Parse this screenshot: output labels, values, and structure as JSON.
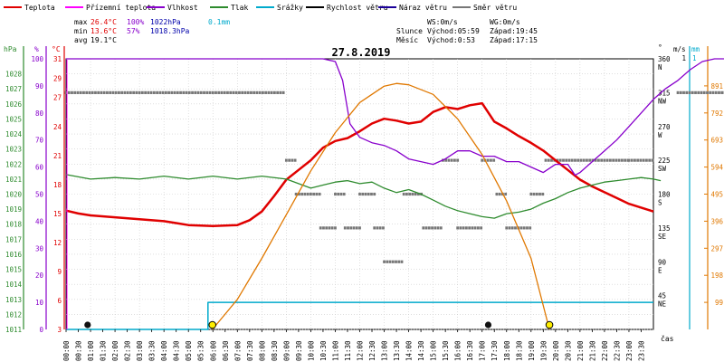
{
  "legend": [
    {
      "label": "Teplota",
      "color": "#e00000"
    },
    {
      "label": "Přízemní teplota",
      "color": "#ff00ff"
    },
    {
      "label": "Vlhkost",
      "color": "#8800cc"
    },
    {
      "label": "Tlak",
      "color": "#2e8b2e"
    },
    {
      "label": "Srážky",
      "color": "#00aacc"
    },
    {
      "label": "Rychlost větru",
      "color": "#000000"
    },
    {
      "label": "Náraz větru",
      "color": "#1a0099"
    },
    {
      "label": "Směr větru",
      "color": "#777777"
    }
  ],
  "stats": {
    "max": {
      "label": "max",
      "temp": "26.4°C",
      "hum": "100%",
      "press": "1022hPa",
      "rain": "0.1mm"
    },
    "min": {
      "label": "min",
      "temp": "13.6°C",
      "hum": "57%",
      "press": "1018.3hPa"
    },
    "avg": {
      "label": "avg",
      "temp": "19.1°C"
    },
    "ws": "WS:0m/s",
    "wg": "WG:0m/s",
    "sun": {
      "label": "Slunce",
      "rise": "Východ:05:59",
      "set": "Západ:19:45"
    },
    "moon": {
      "label": "Měsíc",
      "rise": "Východ:0:53",
      "set": "Západ:17:15"
    }
  },
  "title": "27.8.2019",
  "colors": {
    "temp": "#e00000",
    "ground": "#ff00ff",
    "hum": "#8800cc",
    "press": "#2e8b2e",
    "rain": "#00aacc",
    "wind": "#000000",
    "gust": "#1a0099",
    "dir": "#777777",
    "sun": "#e07800",
    "grid": "#cccccc",
    "frame": "#000000",
    "stats_blue": "#0000aa",
    "rain_text": "#00aacc"
  },
  "chart_data": {
    "type": "line",
    "title": "27.8.2019",
    "xlabel": "čas",
    "x_ticks": [
      "00:00",
      "00:30",
      "01:00",
      "01:30",
      "02:00",
      "02:30",
      "03:00",
      "03:30",
      "04:00",
      "04:30",
      "05:00",
      "05:30",
      "06:00",
      "06:30",
      "07:00",
      "07:30",
      "08:00",
      "08:30",
      "09:00",
      "09:30",
      "10:00",
      "10:30",
      "11:00",
      "11:30",
      "12:00",
      "12:30",
      "13:00",
      "13:30",
      "14:00",
      "14:30",
      "15:00",
      "15:30",
      "16:00",
      "16:30",
      "17:00",
      "17:30",
      "18:00",
      "18:30",
      "19:00",
      "19:30",
      "20:00",
      "20:30",
      "21:00",
      "21:30",
      "22:00",
      "22:30",
      "23:00",
      "23:30"
    ],
    "axes": {
      "hpa": {
        "label": "hPa",
        "ticks": [
          "1011",
          "1012",
          "1013",
          "1014",
          "1015",
          "1016",
          "1017",
          "1018",
          "1019",
          "1020",
          "1021",
          "1022",
          "1023",
          "1024",
          "1025",
          "1026",
          "1027",
          "1028"
        ],
        "range": [
          1011,
          1029
        ]
      },
      "pct": {
        "label": "%",
        "ticks": [
          "0",
          "10",
          "20",
          "30",
          "40",
          "50",
          "60",
          "70",
          "80",
          "90",
          "100"
        ],
        "range": [
          0,
          100
        ]
      },
      "temp": {
        "label": "°C",
        "ticks": [
          "3",
          "6",
          "9",
          "12",
          "15",
          "18",
          "21",
          "24",
          "27",
          "29",
          "31"
        ],
        "range": [
          3,
          31
        ]
      },
      "deg": {
        "label": "°",
        "ticks": [
          {
            "v": "45",
            "n": "NE"
          },
          {
            "v": "90",
            "n": "E"
          },
          {
            "v": "135",
            "n": "SE"
          },
          {
            "v": "180",
            "n": "S"
          },
          {
            "v": "225",
            "n": "SW"
          },
          {
            "v": "270",
            "n": "W"
          },
          {
            "v": "315",
            "n": "NW"
          },
          {
            "v": "360",
            "n": "N"
          }
        ],
        "range": [
          0,
          360
        ]
      },
      "ms": {
        "label": "m/s",
        "ticks": [
          "1"
        ],
        "range": [
          0,
          1
        ]
      },
      "mm": {
        "label": "mm",
        "ticks": [
          "1"
        ],
        "range": [
          0,
          1
        ]
      },
      "sun": {
        "label": "",
        "ticks": [
          "99",
          "198",
          "297",
          "396",
          "495",
          "594",
          "693",
          "792",
          "891"
        ],
        "range": [
          0,
          990
        ]
      }
    },
    "series": [
      {
        "name": "Teplota",
        "axis": "temp",
        "points": [
          [
            0,
            15.3
          ],
          [
            0.5,
            15.0
          ],
          [
            1,
            14.8
          ],
          [
            2,
            14.6
          ],
          [
            3,
            14.4
          ],
          [
            4,
            14.2
          ],
          [
            4.5,
            14.0
          ],
          [
            5,
            13.8
          ],
          [
            6,
            13.7
          ],
          [
            7,
            13.8
          ],
          [
            7.5,
            14.3
          ],
          [
            8,
            15.2
          ],
          [
            8.5,
            16.8
          ],
          [
            9,
            18.5
          ],
          [
            9.5,
            19.5
          ],
          [
            10,
            20.5
          ],
          [
            10.5,
            21.8
          ],
          [
            11,
            22.5
          ],
          [
            11.5,
            22.8
          ],
          [
            12,
            23.5
          ],
          [
            12.5,
            24.3
          ],
          [
            13,
            24.8
          ],
          [
            13.5,
            24.6
          ],
          [
            14,
            24.3
          ],
          [
            14.5,
            24.5
          ],
          [
            15,
            25.5
          ],
          [
            15.5,
            26.0
          ],
          [
            16,
            25.8
          ],
          [
            16.5,
            26.2
          ],
          [
            17,
            26.4
          ],
          [
            17.5,
            24.5
          ],
          [
            18,
            23.8
          ],
          [
            18.5,
            23.0
          ],
          [
            19,
            22.3
          ],
          [
            19.5,
            21.5
          ],
          [
            20,
            20.5
          ],
          [
            20.5,
            19.5
          ],
          [
            21,
            18.5
          ],
          [
            21.5,
            17.8
          ],
          [
            22,
            17.2
          ],
          [
            22.5,
            16.6
          ],
          [
            23,
            16.0
          ],
          [
            23.5,
            15.6
          ],
          [
            24,
            15.2
          ]
        ]
      },
      {
        "name": "Vlhkost",
        "axis": "pct",
        "points": [
          [
            0,
            100
          ],
          [
            5,
            100
          ],
          [
            10,
            100
          ],
          [
            10.5,
            100
          ],
          [
            11,
            99
          ],
          [
            11.3,
            92
          ],
          [
            11.6,
            76
          ],
          [
            12,
            71
          ],
          [
            12.5,
            69
          ],
          [
            13,
            68
          ],
          [
            13.5,
            66
          ],
          [
            14,
            63
          ],
          [
            14.5,
            62
          ],
          [
            15,
            61
          ],
          [
            15.5,
            63
          ],
          [
            16,
            66
          ],
          [
            16.5,
            66
          ],
          [
            17,
            64
          ],
          [
            17.5,
            64
          ],
          [
            18,
            62
          ],
          [
            18.5,
            62
          ],
          [
            19,
            60
          ],
          [
            19.5,
            58
          ],
          [
            20,
            61
          ],
          [
            20.5,
            61
          ],
          [
            20.8,
            57
          ],
          [
            21,
            58
          ],
          [
            21.5,
            62
          ],
          [
            22,
            66
          ],
          [
            22.5,
            70
          ],
          [
            23,
            75
          ],
          [
            23.5,
            80
          ],
          [
            24,
            85
          ],
          [
            24.5,
            89
          ],
          [
            25,
            92
          ],
          [
            25.5,
            96
          ],
          [
            26,
            99
          ],
          [
            26.5,
            100
          ],
          [
            27,
            100
          ]
        ]
      },
      {
        "name": "Tlak",
        "axis": "hpa",
        "points": [
          [
            0,
            1021.3
          ],
          [
            1,
            1021.0
          ],
          [
            2,
            1021.1
          ],
          [
            3,
            1021.0
          ],
          [
            4,
            1021.2
          ],
          [
            5,
            1021.0
          ],
          [
            6,
            1021.2
          ],
          [
            7,
            1021.0
          ],
          [
            8,
            1021.2
          ],
          [
            9,
            1021.0
          ],
          [
            10,
            1020.4
          ],
          [
            10.5,
            1020.6
          ],
          [
            11,
            1020.8
          ],
          [
            11.5,
            1020.9
          ],
          [
            12,
            1020.7
          ],
          [
            12.5,
            1020.8
          ],
          [
            13,
            1020.4
          ],
          [
            13.5,
            1020.1
          ],
          [
            14,
            1020.3
          ],
          [
            14.5,
            1020.0
          ],
          [
            15,
            1019.6
          ],
          [
            15.5,
            1019.2
          ],
          [
            16,
            1018.9
          ],
          [
            16.5,
            1018.7
          ],
          [
            17,
            1018.5
          ],
          [
            17.5,
            1018.4
          ],
          [
            18,
            1018.7
          ],
          [
            18.5,
            1018.8
          ],
          [
            19,
            1019.0
          ],
          [
            19.5,
            1019.4
          ],
          [
            20,
            1019.7
          ],
          [
            20.5,
            1020.1
          ],
          [
            21,
            1020.4
          ],
          [
            21.5,
            1020.6
          ],
          [
            22,
            1020.8
          ],
          [
            22.5,
            1020.9
          ],
          [
            23,
            1021.0
          ],
          [
            23.5,
            1021.1
          ],
          [
            24,
            1021.0
          ],
          [
            24.3,
            1020.9
          ]
        ]
      },
      {
        "name": "Srážky",
        "axis": "mm",
        "points": [
          [
            0,
            0
          ],
          [
            5.8,
            0
          ],
          [
            5.8,
            0.1
          ],
          [
            24,
            0.1
          ]
        ]
      },
      {
        "name": "Sun",
        "axis": "sun",
        "points": [
          [
            5.98,
            0
          ],
          [
            7,
            110
          ],
          [
            8,
            260
          ],
          [
            9,
            420
          ],
          [
            10,
            580
          ],
          [
            11,
            720
          ],
          [
            12,
            830
          ],
          [
            13,
            890
          ],
          [
            13.5,
            900
          ],
          [
            14,
            895
          ],
          [
            15,
            860
          ],
          [
            16,
            770
          ],
          [
            17,
            640
          ],
          [
            18,
            470
          ],
          [
            19,
            260
          ],
          [
            19.75,
            0
          ]
        ]
      }
    ],
    "wind_direction_samples": [
      {
        "x0": 0.0,
        "x1": 9.0,
        "deg": 315
      },
      {
        "x0": 9.0,
        "x1": 9.4,
        "deg": 225
      },
      {
        "x0": 9.4,
        "x1": 10.4,
        "deg": 180
      },
      {
        "x0": 10.4,
        "x1": 11.0,
        "deg": 135
      },
      {
        "x0": 11.0,
        "x1": 11.4,
        "deg": 180
      },
      {
        "x0": 11.4,
        "x1": 12.0,
        "deg": 135
      },
      {
        "x0": 12.0,
        "x1": 12.6,
        "deg": 180
      },
      {
        "x0": 12.6,
        "x1": 13.0,
        "deg": 135
      },
      {
        "x0": 13.0,
        "x1": 13.8,
        "deg": 90
      },
      {
        "x0": 13.8,
        "x1": 14.6,
        "deg": 180
      },
      {
        "x0": 14.6,
        "x1": 15.4,
        "deg": 135
      },
      {
        "x0": 15.4,
        "x1": 16.0,
        "deg": 225
      },
      {
        "x0": 16.0,
        "x1": 17.0,
        "deg": 135
      },
      {
        "x0": 17.0,
        "x1": 17.6,
        "deg": 225
      },
      {
        "x0": 17.6,
        "x1": 18.0,
        "deg": 180
      },
      {
        "x0": 18.0,
        "x1": 19.0,
        "deg": 135
      },
      {
        "x0": 19.0,
        "x1": 19.6,
        "deg": 180
      },
      {
        "x0": 19.6,
        "x1": 23.0,
        "deg": 225
      },
      {
        "x0": 23.0,
        "x1": 24.0,
        "deg": 225
      },
      {
        "x0": 25.0,
        "x1": 27.0,
        "deg": 315
      }
    ],
    "markers": [
      {
        "name": "sunrise-marker",
        "x": 5.98
      },
      {
        "name": "sunset-marker",
        "x": 19.75
      },
      {
        "name": "moonrise-marker",
        "x": 0.88
      },
      {
        "name": "moonset-marker",
        "x": 17.25
      }
    ],
    "grid": true,
    "legend": "top"
  }
}
